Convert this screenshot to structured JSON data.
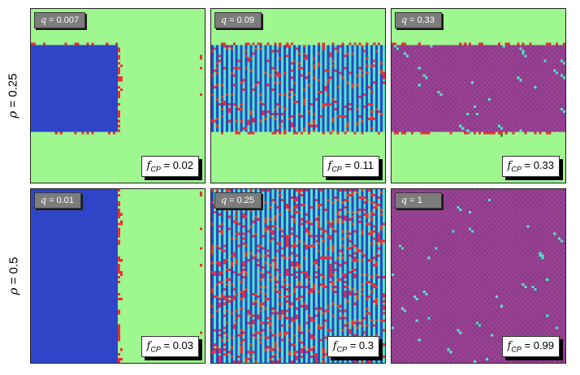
{
  "row_labels": [
    {
      "symbol": "ρ",
      "text": " = 0.25"
    },
    {
      "symbol": "ρ",
      "text": " = 0.5"
    }
  ],
  "panels": [
    {
      "q": "0.007",
      "fcp": "0.02",
      "pattern": "blue-block"
    },
    {
      "q": "0.09",
      "fcp": "0.11",
      "pattern": "stripes"
    },
    {
      "q": "0.33",
      "fcp": "0.33",
      "pattern": "checker-band"
    },
    {
      "q": "0.01",
      "fcp": "0.03",
      "pattern": "blue-block-full"
    },
    {
      "q": "0.25",
      "fcp": "0.3",
      "pattern": "stripes-full"
    },
    {
      "q": "1",
      "fcp": "0.99",
      "pattern": "checker-full"
    }
  ],
  "labels": {
    "q_symbol": "q",
    "q_eq": " = ",
    "f_symbol": "f",
    "f_sub": "CP",
    "f_eq": " = "
  },
  "colors": {
    "background": "#9ef78f",
    "blue": "#2e45c8",
    "red": "#e8303a",
    "cyan": "#4fe6c4",
    "purple": "#8a3a8e",
    "magenta": "#9c4390",
    "dark_green": "#1e9a3a",
    "box_gray": "#7c7c7c"
  }
}
